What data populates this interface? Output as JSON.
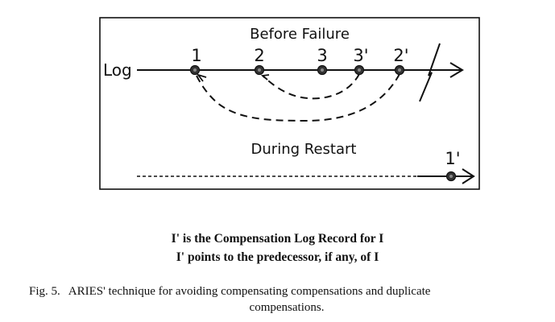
{
  "figure": {
    "title_before": "Before Failure",
    "title_restart": "During Restart",
    "log_label": "Log",
    "records": [
      {
        "label": "1"
      },
      {
        "label": "2"
      },
      {
        "label": "3"
      },
      {
        "label": "3'"
      },
      {
        "label": "2'"
      }
    ],
    "restart_record": "1'"
  },
  "notes": {
    "line1": "I' is the Compensation Log Record for I",
    "line2": "I' points to the predecessor, if any, of I"
  },
  "caption": {
    "label": "Fig. 5.",
    "text_line1": "ARIES' technique for avoiding compensating compensations and duplicate",
    "text_line2": "compensations."
  }
}
